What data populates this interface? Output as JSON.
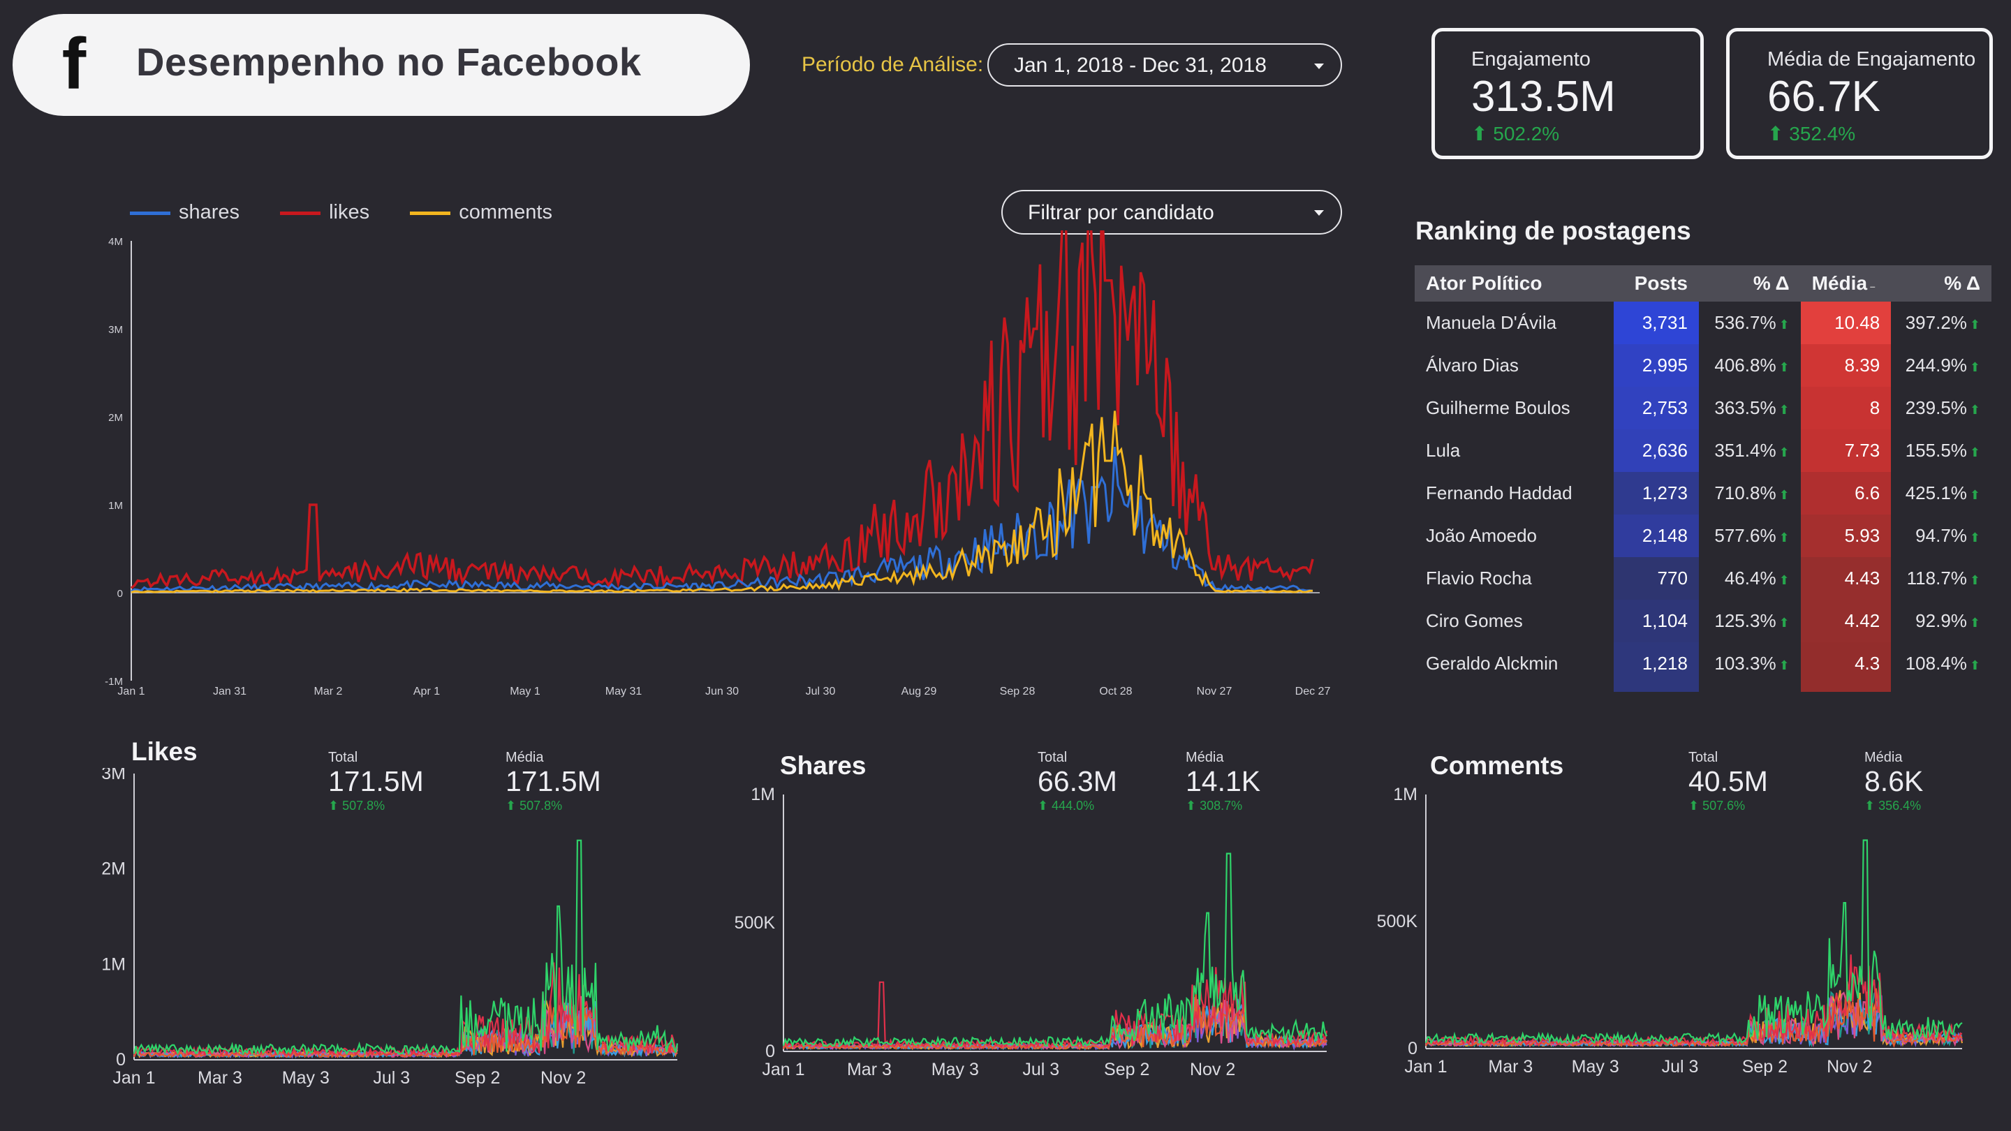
{
  "header": {
    "title": "Desempenho no Facebook",
    "icon": "facebook-icon"
  },
  "period": {
    "label": "Período de Análise:",
    "value": "Jan 1, 2018 - Dec 31, 2018"
  },
  "filter": {
    "label": "Filtrar por candidato"
  },
  "kpis": [
    {
      "label": "Engajamento",
      "value": "313.5M",
      "change": "⬆ 502.2%"
    },
    {
      "label": "Média de Engajamento",
      "value": "66.7K",
      "change": "⬆ 352.4%"
    }
  ],
  "ranking": {
    "title": "Ranking de postagens",
    "headers": [
      "Ator Político",
      "Posts",
      "% Δ",
      "Média",
      "% Δ"
    ],
    "rows": [
      {
        "name": "Manuela D'Ávila",
        "posts": "3,731",
        "posts_change": "536.7%",
        "media": "10.48",
        "media_change": "397.2%"
      },
      {
        "name": "Álvaro Dias",
        "posts": "2,995",
        "posts_change": "406.8%",
        "media": "8.39",
        "media_change": "244.9%"
      },
      {
        "name": "Guilherme Boulos",
        "posts": "2,753",
        "posts_change": "363.5%",
        "media": "8",
        "media_change": "239.5%"
      },
      {
        "name": "Lula",
        "posts": "2,636",
        "posts_change": "351.4%",
        "media": "7.73",
        "media_change": "155.5%"
      },
      {
        "name": "Fernando Haddad",
        "posts": "1,273",
        "posts_change": "710.8%",
        "media": "6.6",
        "media_change": "425.1%"
      },
      {
        "name": "João Amoedo",
        "posts": "2,148",
        "posts_change": "577.6%",
        "media": "5.93",
        "media_change": "94.7%"
      },
      {
        "name": "Flavio Rocha",
        "posts": "770",
        "posts_change": "46.4%",
        "media": "4.43",
        "media_change": "118.7%"
      },
      {
        "name": "Ciro Gomes",
        "posts": "1,104",
        "posts_change": "125.3%",
        "media": "4.42",
        "media_change": "92.9%"
      },
      {
        "name": "Geraldo Alckmin",
        "posts": "1,218",
        "posts_change": "103.3%",
        "media": "4.3",
        "media_change": "108.4%"
      }
    ]
  },
  "colors": {
    "shares": "#2f6fd6",
    "likes": "#c8181e",
    "comments": "#f2b51f",
    "posts_scale": [
      "#2d3fd0",
      "#2d388f"
    ],
    "media_scale": [
      "#e2403d",
      "#8f2d2d"
    ],
    "positive": "#26a64d"
  },
  "chart_data": [
    {
      "type": "line",
      "title": "",
      "series": [
        {
          "name": "shares",
          "x": [
            "Jan 1",
            "Jan 31",
            "Mar 2",
            "Apr 1",
            "May 1",
            "May 31",
            "Jun 30",
            "Jul 30",
            "Aug 29",
            "Sep 28",
            "Oct 28",
            "Nov 27",
            "Dec 27"
          ],
          "values": [
            40000,
            60000,
            70000,
            90000,
            80000,
            70000,
            80000,
            150000,
            300000,
            600000,
            1100000,
            60000,
            50000
          ]
        },
        {
          "name": "likes",
          "x": [
            "Jan 1",
            "Jan 31",
            "Mar 2",
            "Apr 1",
            "May 1",
            "May 31",
            "Jun 30",
            "Jul 30",
            "Aug 29",
            "Sep 28",
            "Oct 28",
            "Nov 27",
            "Dec 27"
          ],
          "values": [
            120000,
            180000,
            200000,
            300000,
            200000,
            190000,
            220000,
            350000,
            900000,
            2200000,
            3500000,
            300000,
            250000
          ]
        },
        {
          "name": "comments",
          "x": [
            "Jan 1",
            "Jan 31",
            "Mar 2",
            "Apr 1",
            "May 1",
            "May 31",
            "Jun 30",
            "Jul 30",
            "Aug 29",
            "Sep 28",
            "Oct 28",
            "Nov 27",
            "Dec 27"
          ],
          "values": [
            10000,
            20000,
            25000,
            30000,
            20000,
            20000,
            30000,
            80000,
            200000,
            500000,
            1500000,
            20000,
            15000
          ]
        }
      ],
      "yticks": [
        "-1M",
        "0",
        "1M",
        "2M",
        "3M",
        "4M"
      ],
      "ylim": [
        -1000000,
        4000000
      ],
      "legend": "top-left",
      "grid": false
    },
    {
      "type": "line",
      "title": "Likes",
      "total_label": "Total",
      "total": "171.5M",
      "total_change": "⬆ 507.8%",
      "avg_label": "Média",
      "avg": "171.5M",
      "avg_change": "⬆ 507.8%",
      "yticks": [
        "0",
        "1M",
        "2M",
        "3M"
      ],
      "xticks": [
        "Jan 1",
        "Mar 3",
        "May 3",
        "Jul 3",
        "Sep 2",
        "Nov 2"
      ],
      "ylim": [
        0,
        3000000
      ],
      "peak": 2300000
    },
    {
      "type": "line",
      "title": "Shares",
      "total_label": "Total",
      "total": "66.3M",
      "total_change": "⬆ 444.0%",
      "avg_label": "Média",
      "avg": "14.1K",
      "avg_change": "⬆ 308.7%",
      "yticks": [
        "0",
        "500K",
        "1M"
      ],
      "xticks": [
        "Jan 1",
        "Mar 3",
        "May 3",
        "Jul 3",
        "Sep 2",
        "Nov 2"
      ],
      "ylim": [
        0,
        1000000
      ],
      "peak": 770000
    },
    {
      "type": "line",
      "title": "Comments",
      "total_label": "Total",
      "total": "40.5M",
      "total_change": "⬆ 507.6%",
      "avg_label": "Média",
      "avg": "8.6K",
      "avg_change": "⬆ 356.4%",
      "yticks": [
        "0",
        "500K",
        "1M"
      ],
      "xticks": [
        "Jan 1",
        "Mar 3",
        "May 3",
        "Jul 3",
        "Sep 2",
        "Nov 2"
      ],
      "ylim": [
        0,
        1000000
      ],
      "peak": 820000
    }
  ]
}
